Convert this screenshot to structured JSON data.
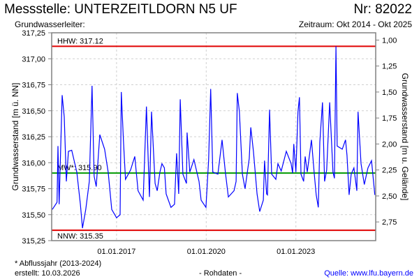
{
  "header": {
    "title": "Messstelle: UNTERZEITLDORN N5 UF",
    "number": "Nr: 82022",
    "aquifer": "Grundwasserleiter:",
    "period": "Zeitraum: Okt 2014 - Okt 2025"
  },
  "footer": {
    "note": "* Abflussjahr (2013-2024)",
    "created": "erstellt:  10.03.2026",
    "rawdata": "- Rohdaten -",
    "source": "Quelle: www.lfu.bayern.de"
  },
  "colors": {
    "series": "#0000ff",
    "hhw": "#e00000",
    "nnw": "#e00000",
    "mw": "#009900",
    "grid": "#d0d0d0"
  },
  "chart_data": {
    "type": "line",
    "ylabel": "Grundwasserstand [m ü. NN]",
    "ylabel_right": "Grundwasserstand [m u. Gelände]",
    "ylim": [
      315.25,
      317.25
    ],
    "xlim": [
      2014.83,
      2025.67
    ],
    "yticks": [
      "315,25",
      "315,50",
      "315,75",
      "316,00",
      "316,25",
      "316,50",
      "316,75",
      "317,00",
      "317,25"
    ],
    "ytick_values": [
      315.25,
      315.5,
      315.75,
      316.0,
      316.25,
      316.5,
      316.75,
      317.0,
      317.25
    ],
    "right_ticks": [
      "1,00",
      "1,25",
      "1,50",
      "1,75",
      "2,00",
      "2,25",
      "2,50",
      "2,75"
    ],
    "right_tick_values": [
      1.0,
      1.25,
      1.5,
      1.75,
      2.0,
      2.25,
      2.5,
      2.75
    ],
    "right_reference_level": 318.18,
    "xticks": [
      "01.01.2017",
      "01.01.2020",
      "01.01.2023"
    ],
    "xtick_values": [
      2017.0,
      2020.0,
      2023.0
    ],
    "reference_lines": [
      {
        "label": "HHW: 317.12",
        "value": 317.12,
        "key": "hhw"
      },
      {
        "label": "MW*: 315.90",
        "value": 315.9,
        "key": "mw"
      },
      {
        "label": "NNW: 315.35",
        "value": 315.35,
        "key": "nnw"
      }
    ],
    "series": [
      {
        "name": "Grundwasserstand",
        "points": [
          [
            2014.85,
            315.55
          ],
          [
            2015.01,
            315.62
          ],
          [
            2015.04,
            316.16
          ],
          [
            2015.08,
            315.6
          ],
          [
            2015.18,
            316.65
          ],
          [
            2015.25,
            316.44
          ],
          [
            2015.32,
            315.82
          ],
          [
            2015.39,
            316.11
          ],
          [
            2015.5,
            316.12
          ],
          [
            2015.67,
            315.91
          ],
          [
            2015.79,
            315.6
          ],
          [
            2015.86,
            315.37
          ],
          [
            2015.97,
            315.55
          ],
          [
            2016.09,
            315.82
          ],
          [
            2016.18,
            316.74
          ],
          [
            2016.25,
            315.87
          ],
          [
            2016.32,
            315.77
          ],
          [
            2016.44,
            316.27
          ],
          [
            2016.6,
            316.13
          ],
          [
            2016.72,
            315.91
          ],
          [
            2016.84,
            315.55
          ],
          [
            2017.0,
            315.47
          ],
          [
            2017.12,
            315.5
          ],
          [
            2017.16,
            316.68
          ],
          [
            2017.23,
            316.22
          ],
          [
            2017.3,
            315.84
          ],
          [
            2017.47,
            315.93
          ],
          [
            2017.61,
            316.06
          ],
          [
            2017.72,
            315.73
          ],
          [
            2017.89,
            315.64
          ],
          [
            2018.0,
            316.54
          ],
          [
            2018.1,
            315.67
          ],
          [
            2018.17,
            316.49
          ],
          [
            2018.29,
            315.8
          ],
          [
            2018.36,
            315.73
          ],
          [
            2018.45,
            315.91
          ],
          [
            2018.52,
            315.99
          ],
          [
            2018.6,
            315.95
          ],
          [
            2018.66,
            315.7
          ],
          [
            2018.82,
            315.57
          ],
          [
            2018.94,
            315.6
          ],
          [
            2019.01,
            316.09
          ],
          [
            2019.08,
            315.7
          ],
          [
            2019.13,
            316.61
          ],
          [
            2019.22,
            315.89
          ],
          [
            2019.34,
            315.8
          ],
          [
            2019.36,
            316.29
          ],
          [
            2019.45,
            315.91
          ],
          [
            2019.59,
            316.03
          ],
          [
            2019.76,
            315.82
          ],
          [
            2019.83,
            315.64
          ],
          [
            2019.99,
            315.57
          ],
          [
            2020.08,
            316.02
          ],
          [
            2020.15,
            316.71
          ],
          [
            2020.22,
            315.91
          ],
          [
            2020.39,
            315.89
          ],
          [
            2020.53,
            316.22
          ],
          [
            2020.64,
            315.91
          ],
          [
            2020.74,
            315.67
          ],
          [
            2020.93,
            315.73
          ],
          [
            2021.0,
            315.82
          ],
          [
            2021.04,
            316.67
          ],
          [
            2021.11,
            316.49
          ],
          [
            2021.21,
            315.89
          ],
          [
            2021.3,
            315.75
          ],
          [
            2021.44,
            316.04
          ],
          [
            2021.49,
            316.34
          ],
          [
            2021.58,
            316.11
          ],
          [
            2021.7,
            315.7
          ],
          [
            2021.79,
            315.53
          ],
          [
            2021.91,
            315.64
          ],
          [
            2021.95,
            316.02
          ],
          [
            2022.02,
            315.7
          ],
          [
            2022.05,
            315.69
          ],
          [
            2022.12,
            316.51
          ],
          [
            2022.19,
            315.89
          ],
          [
            2022.33,
            315.84
          ],
          [
            2022.4,
            315.99
          ],
          [
            2022.51,
            315.92
          ],
          [
            2022.68,
            316.11
          ],
          [
            2022.84,
            315.99
          ],
          [
            2022.89,
            315.9
          ],
          [
            2022.93,
            316.18
          ],
          [
            2023.0,
            315.91
          ],
          [
            2023.07,
            316.49
          ],
          [
            2023.12,
            316.63
          ],
          [
            2023.17,
            315.89
          ],
          [
            2023.26,
            315.82
          ],
          [
            2023.31,
            316.06
          ],
          [
            2023.38,
            315.91
          ],
          [
            2023.52,
            316.22
          ],
          [
            2023.61,
            315.91
          ],
          [
            2023.68,
            315.69
          ],
          [
            2023.75,
            315.57
          ],
          [
            2023.8,
            316.2
          ],
          [
            2023.89,
            316.58
          ],
          [
            2023.96,
            315.82
          ],
          [
            2024.03,
            315.93
          ],
          [
            2024.13,
            316.58
          ],
          [
            2024.24,
            315.91
          ],
          [
            2024.29,
            315.85
          ],
          [
            2024.34,
            317.12
          ],
          [
            2024.38,
            316.16
          ],
          [
            2024.55,
            316.13
          ],
          [
            2024.66,
            316.22
          ],
          [
            2024.71,
            316.07
          ],
          [
            2024.78,
            315.69
          ],
          [
            2024.85,
            315.89
          ],
          [
            2024.94,
            315.95
          ],
          [
            2025.04,
            315.73
          ],
          [
            2025.08,
            316.49
          ],
          [
            2025.18,
            315.99
          ],
          [
            2025.29,
            315.79
          ],
          [
            2025.41,
            315.95
          ],
          [
            2025.53,
            316.02
          ],
          [
            2025.62,
            315.75
          ],
          [
            2025.64,
            315.69
          ]
        ]
      }
    ]
  }
}
